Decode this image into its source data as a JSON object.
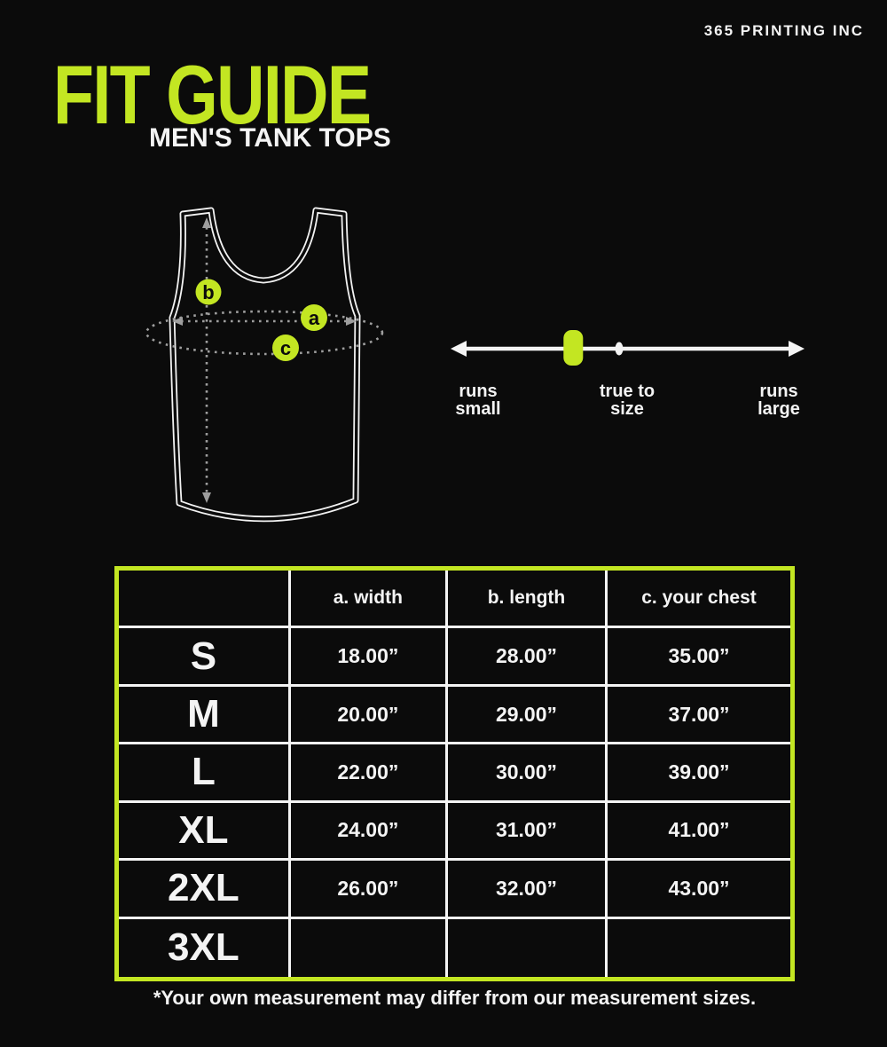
{
  "brand": "365 PRINTING INC",
  "title": {
    "main": "FIT GUIDE",
    "subtitle": "MEN'S TANK TOPS"
  },
  "colors": {
    "accent_green": "#c3e622",
    "background": "#0b0b0b",
    "text_white": "#f4f4f4",
    "dash_gray": "#9e9e9e"
  },
  "diagram": {
    "markers": [
      {
        "letter": "a",
        "refers_to": "width"
      },
      {
        "letter": "b",
        "refers_to": "length"
      },
      {
        "letter": "c",
        "refers_to": "your chest"
      }
    ]
  },
  "fit_scale": {
    "left_label": "runs\nsmall",
    "center_label": "true to\nsize",
    "right_label": "runs\nlarge",
    "marker_fraction": 0.34,
    "marker_meaning": "fit indicator between runs small and true to size"
  },
  "size_table": {
    "headers": {
      "width": "a. width",
      "length": "b. length",
      "chest": "c. your chest"
    },
    "rows": [
      {
        "size": "S",
        "width": "18.00”",
        "length": "28.00”",
        "chest": "35.00”"
      },
      {
        "size": "M",
        "width": "20.00”",
        "length": "29.00”",
        "chest": "37.00”"
      },
      {
        "size": "L",
        "width": "22.00”",
        "length": "30.00”",
        "chest": "39.00”"
      },
      {
        "size": "XL",
        "width": "24.00”",
        "length": "31.00”",
        "chest": "41.00”"
      },
      {
        "size": "2XL",
        "width": "26.00”",
        "length": "32.00”",
        "chest": "43.00”"
      },
      {
        "size": "3XL",
        "width": "",
        "length": "",
        "chest": ""
      }
    ]
  },
  "footnote": "*Your own measurement may differ from our measurement sizes."
}
